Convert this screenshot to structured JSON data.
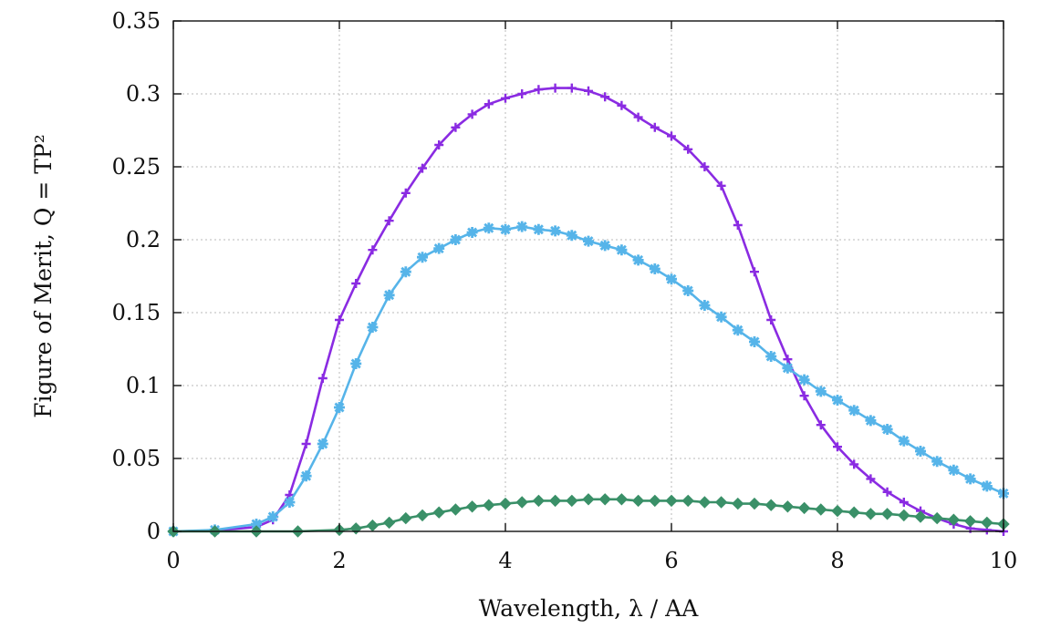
{
  "chart_data": {
    "type": "line",
    "title": "",
    "xlabel": "Wavelength, λ / AA",
    "ylabel": "Figure of Merit, Q = TP²",
    "xlim": [
      0,
      10
    ],
    "ylim": [
      0,
      0.35
    ],
    "xticks": [
      0,
      2,
      4,
      6,
      8,
      10
    ],
    "xtick_labels": [
      "0",
      "2",
      "4",
      "6",
      "8",
      "10"
    ],
    "yticks": [
      0,
      0.05,
      0.1,
      0.15,
      0.2,
      0.25,
      0.3,
      0.35
    ],
    "ytick_labels": [
      "0",
      "0.05",
      "0.1",
      "0.15",
      "0.2",
      "0.25",
      "0.3",
      "0.35"
    ],
    "grid": true,
    "legend": "none",
    "series": [
      {
        "color": "#8a2be2",
        "marker": "plus",
        "x": [
          0,
          0.5,
          1.0,
          1.2,
          1.4,
          1.6,
          1.8,
          2.0,
          2.2,
          2.4,
          2.6,
          2.8,
          3.0,
          3.2,
          3.4,
          3.6,
          3.8,
          4.0,
          4.2,
          4.4,
          4.6,
          4.8,
          5.0,
          5.2,
          5.4,
          5.6,
          5.8,
          6.0,
          6.2,
          6.4,
          6.6,
          6.8,
          7.0,
          7.2,
          7.4,
          7.6,
          7.8,
          8.0,
          8.2,
          8.4,
          8.6,
          8.8,
          9.0,
          9.2,
          9.4,
          9.6,
          9.8,
          10.0
        ],
        "y": [
          0,
          0.0005,
          0.003,
          0.008,
          0.025,
          0.06,
          0.105,
          0.145,
          0.17,
          0.193,
          0.213,
          0.232,
          0.249,
          0.265,
          0.277,
          0.286,
          0.293,
          0.297,
          0.3,
          0.303,
          0.304,
          0.304,
          0.302,
          0.298,
          0.292,
          0.284,
          0.277,
          0.271,
          0.262,
          0.25,
          0.237,
          0.21,
          0.178,
          0.145,
          0.118,
          0.093,
          0.073,
          0.058,
          0.046,
          0.036,
          0.027,
          0.02,
          0.014,
          0.009,
          0.005,
          0.002,
          0.001,
          0
        ]
      },
      {
        "color": "#56b4e9",
        "marker": "asterisk",
        "x": [
          0,
          0.5,
          1.0,
          1.2,
          1.4,
          1.6,
          1.8,
          2.0,
          2.2,
          2.4,
          2.6,
          2.8,
          3.0,
          3.2,
          3.4,
          3.6,
          3.8,
          4.0,
          4.2,
          4.4,
          4.6,
          4.8,
          5.0,
          5.2,
          5.4,
          5.6,
          5.8,
          6.0,
          6.2,
          6.4,
          6.6,
          6.8,
          7.0,
          7.2,
          7.4,
          7.6,
          7.8,
          8.0,
          8.2,
          8.4,
          8.6,
          8.8,
          9.0,
          9.2,
          9.4,
          9.6,
          9.8,
          10.0
        ],
        "y": [
          0,
          0.001,
          0.005,
          0.01,
          0.02,
          0.038,
          0.06,
          0.085,
          0.115,
          0.14,
          0.162,
          0.178,
          0.188,
          0.194,
          0.2,
          0.205,
          0.208,
          0.207,
          0.209,
          0.207,
          0.206,
          0.203,
          0.199,
          0.196,
          0.193,
          0.186,
          0.18,
          0.173,
          0.165,
          0.155,
          0.147,
          0.138,
          0.13,
          0.12,
          0.112,
          0.104,
          0.096,
          0.09,
          0.083,
          0.076,
          0.07,
          0.062,
          0.055,
          0.048,
          0.042,
          0.036,
          0.031,
          0.026
        ]
      },
      {
        "color": "#3a9068",
        "marker": "diamond",
        "x": [
          0,
          0.5,
          1.0,
          1.5,
          2.0,
          2.2,
          2.4,
          2.6,
          2.8,
          3.0,
          3.2,
          3.4,
          3.6,
          3.8,
          4.0,
          4.2,
          4.4,
          4.6,
          4.8,
          5.0,
          5.2,
          5.4,
          5.6,
          5.8,
          6.0,
          6.2,
          6.4,
          6.6,
          6.8,
          7.0,
          7.2,
          7.4,
          7.6,
          7.8,
          8.0,
          8.2,
          8.4,
          8.6,
          8.8,
          9.0,
          9.2,
          9.4,
          9.6,
          9.8,
          10.0
        ],
        "y": [
          0,
          0,
          0,
          0,
          0.001,
          0.002,
          0.004,
          0.006,
          0.009,
          0.011,
          0.013,
          0.015,
          0.017,
          0.018,
          0.019,
          0.02,
          0.021,
          0.021,
          0.021,
          0.022,
          0.022,
          0.022,
          0.021,
          0.021,
          0.021,
          0.021,
          0.02,
          0.02,
          0.019,
          0.019,
          0.018,
          0.017,
          0.016,
          0.015,
          0.014,
          0.013,
          0.012,
          0.012,
          0.011,
          0.01,
          0.009,
          0.008,
          0.007,
          0.006,
          0.005
        ]
      }
    ]
  }
}
